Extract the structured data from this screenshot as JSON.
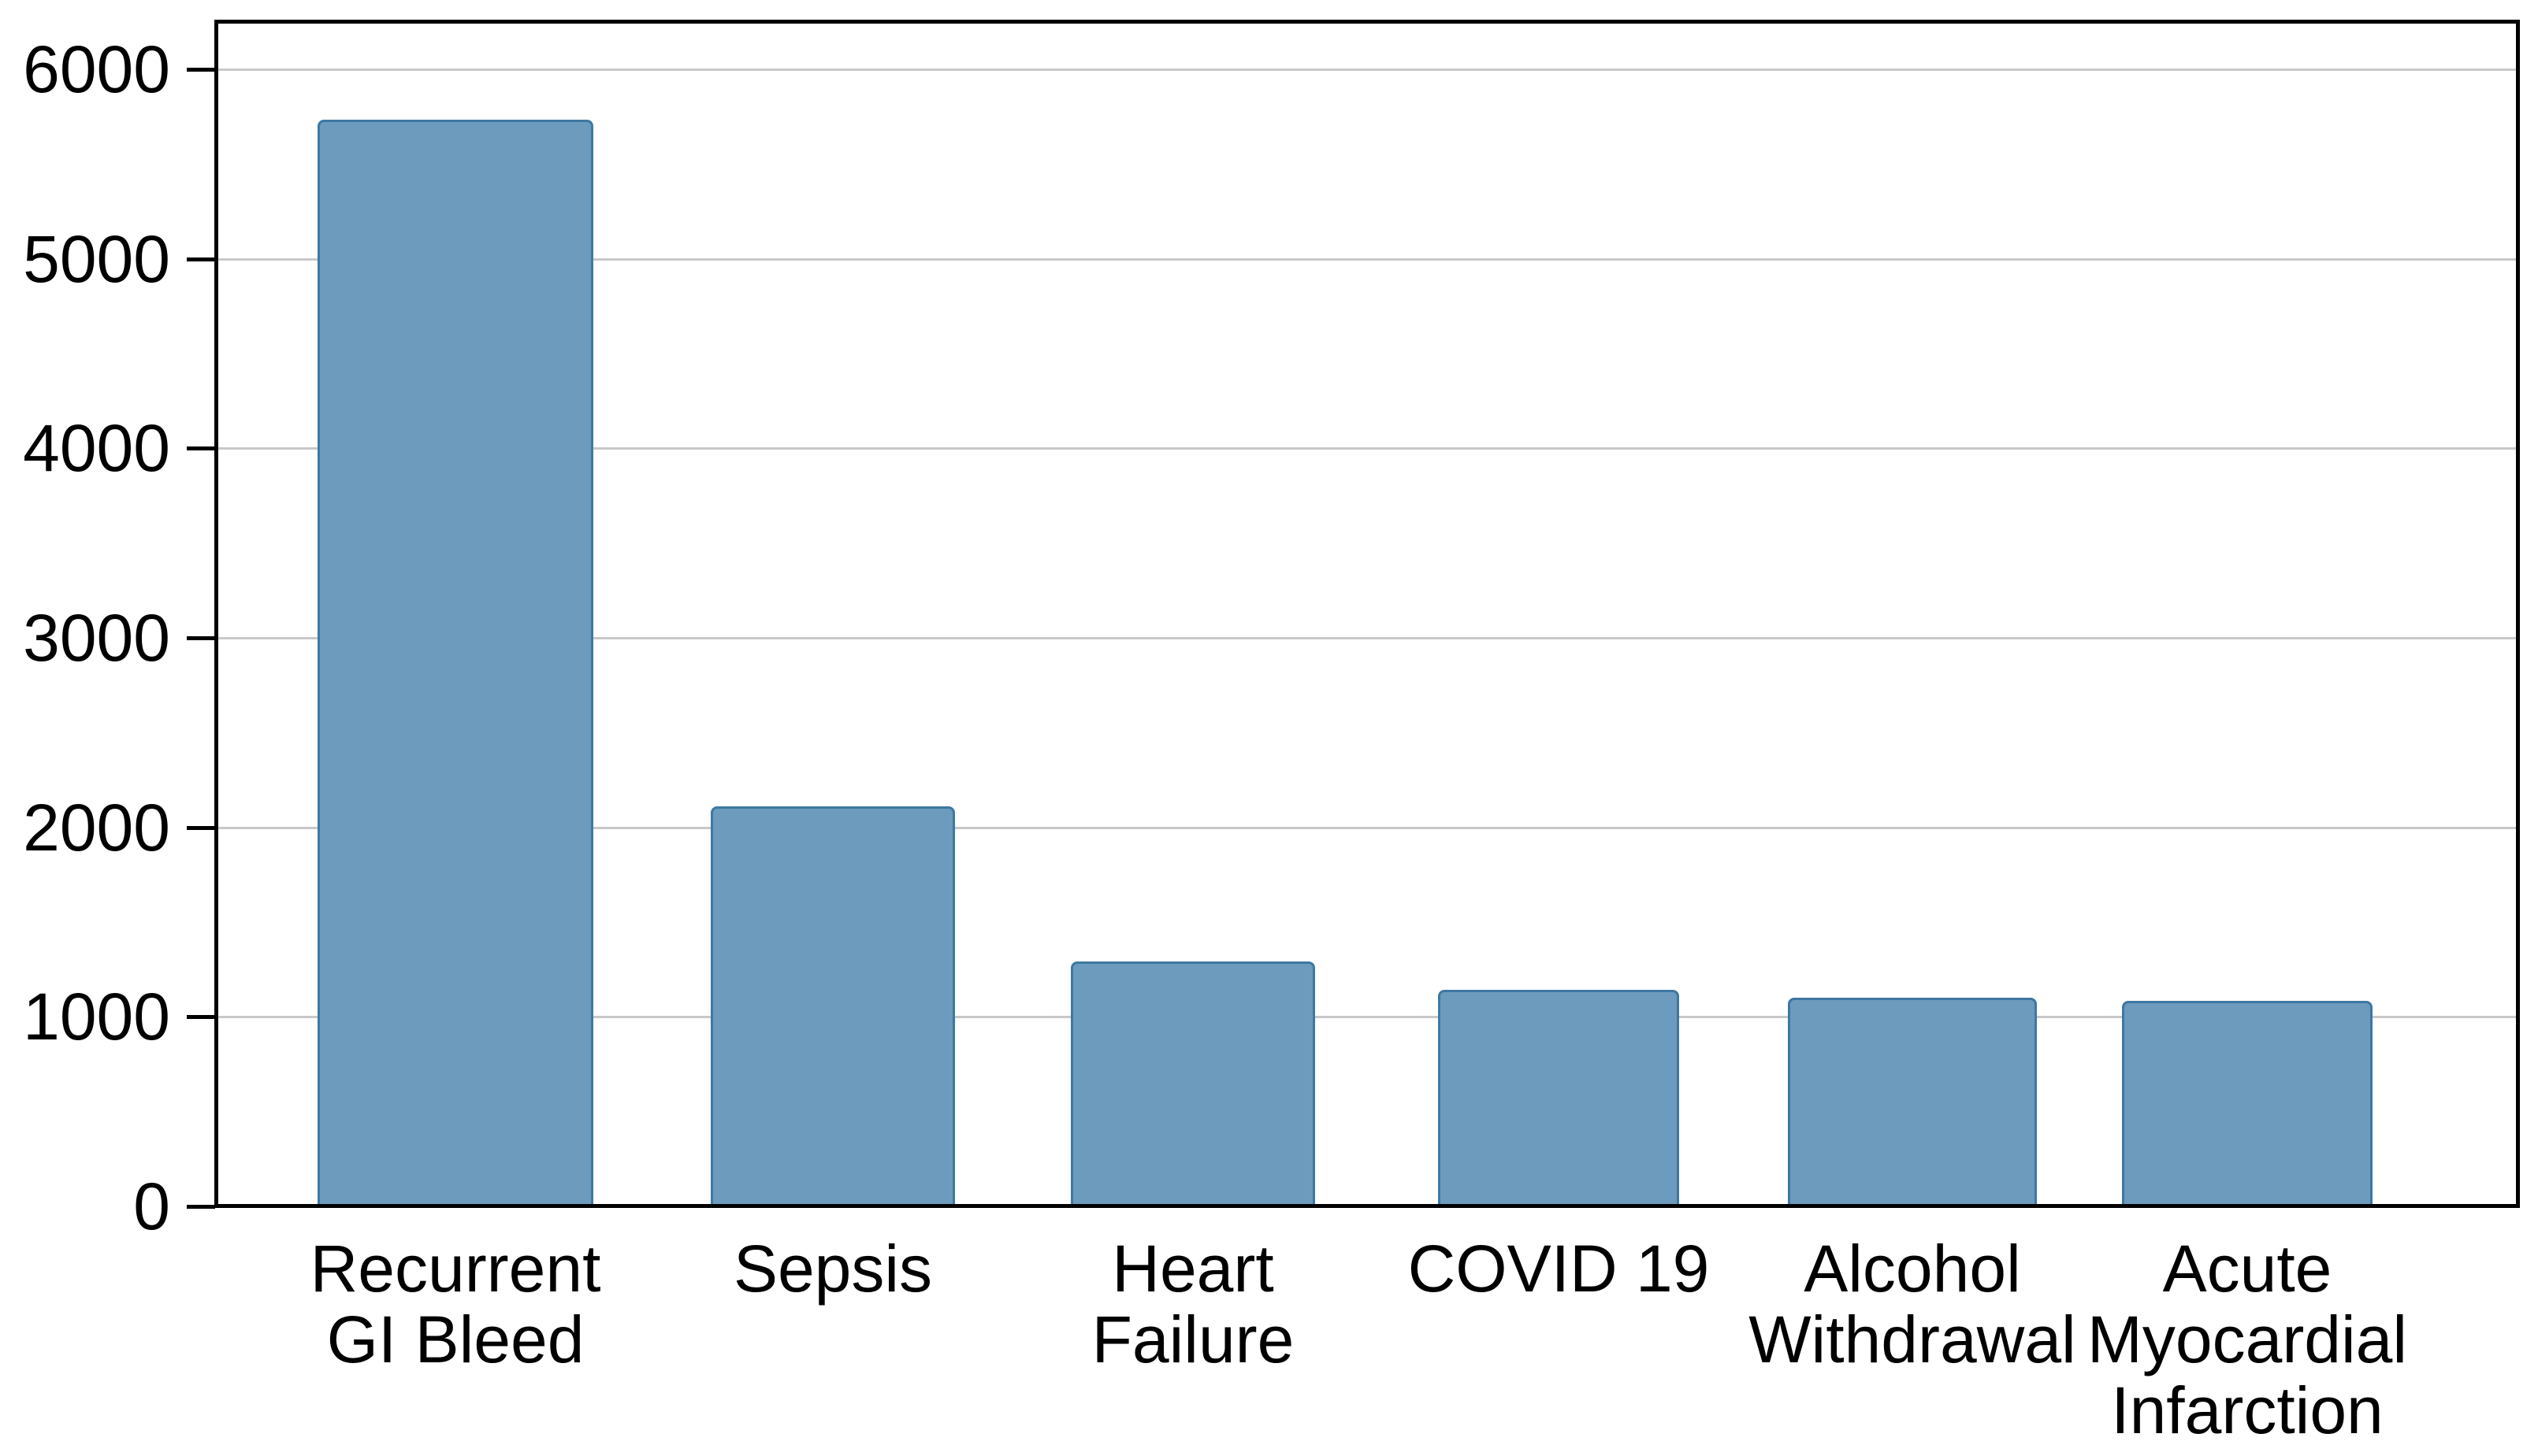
{
  "chart_data": {
    "type": "bar",
    "title": "",
    "categories": [
      "Recurrent\nGI Bleed",
      "Sepsis",
      "Heart\nFailure",
      "COVID 19",
      "Alcohol\nWithdrawal",
      "Acute\nMyocardial\nInfarction"
    ],
    "values": [
      5720,
      2100,
      1280,
      1130,
      1090,
      1070
    ],
    "yticks": [
      0,
      1000,
      2000,
      3000,
      4000,
      5000,
      6000
    ],
    "ytick_labels": [
      "0",
      "1000",
      "2000",
      "3000",
      "4000",
      "5000",
      "6000"
    ],
    "ylim": [
      0,
      6270
    ],
    "xlabel": "",
    "ylabel": "",
    "grid": "horizontal",
    "legend_position": "none",
    "colors": {
      "bar_fill": "#6c9bbd",
      "bar_edge": "#3e78a2",
      "gridline": "#c8c8c8",
      "axis": "#000000",
      "text": "#000000",
      "background": "#ffffff"
    }
  }
}
